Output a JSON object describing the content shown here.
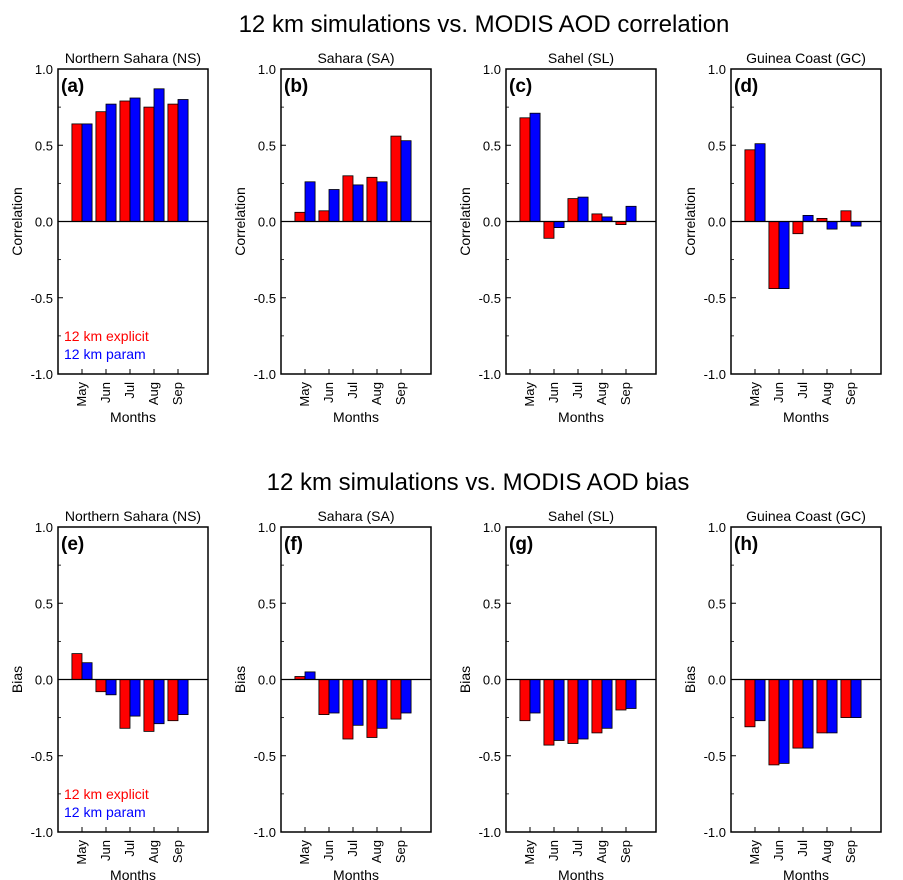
{
  "colors": {
    "explicit": "#ff0000",
    "param": "#0000ff",
    "axis": "#000000"
  },
  "figure_titles": [
    "12 km simulations vs. MODIS AOD correlation",
    "12 km simulations vs. MODIS AOD bias"
  ],
  "legend": {
    "explicit": "12 km explicit",
    "param": "12 km param"
  },
  "chart_data": [
    {
      "type": "bar",
      "title": "Northern Sahara (NS)",
      "panel_label": "(a)",
      "xlabel": "Months",
      "ylabel": "Correlation",
      "ylim": [
        -1,
        1
      ],
      "yticks": [
        "1.0",
        "0.5",
        "0.0",
        "-0.5",
        "-1.0"
      ],
      "categories": [
        "May",
        "Jun",
        "Jul",
        "Aug",
        "Sep"
      ],
      "series": [
        {
          "name": "12 km explicit",
          "values": [
            0.64,
            0.72,
            0.79,
            0.75,
            0.77
          ]
        },
        {
          "name": "12 km param",
          "values": [
            0.64,
            0.77,
            0.81,
            0.87,
            0.8
          ]
        }
      ],
      "legend": true
    },
    {
      "type": "bar",
      "title": "Sahara (SA)",
      "panel_label": "(b)",
      "xlabel": "Months",
      "ylabel": "Correlation",
      "ylim": [
        -1,
        1
      ],
      "yticks": [
        "1.0",
        "0.5",
        "0.0",
        "-0.5",
        "-1.0"
      ],
      "categories": [
        "May",
        "Jun",
        "Jul",
        "Aug",
        "Sep"
      ],
      "series": [
        {
          "name": "12 km explicit",
          "values": [
            0.06,
            0.07,
            0.3,
            0.29,
            0.56
          ]
        },
        {
          "name": "12 km param",
          "values": [
            0.26,
            0.21,
            0.24,
            0.26,
            0.53
          ]
        }
      ],
      "legend": false
    },
    {
      "type": "bar",
      "title": "Sahel (SL)",
      "panel_label": "(c)",
      "xlabel": "Months",
      "ylabel": "Correlation",
      "ylim": [
        -1,
        1
      ],
      "yticks": [
        "1.0",
        "0.5",
        "0.0",
        "-0.5",
        "-1.0"
      ],
      "categories": [
        "May",
        "Jun",
        "Jul",
        "Aug",
        "Sep"
      ],
      "series": [
        {
          "name": "12 km explicit",
          "values": [
            0.68,
            -0.11,
            0.15,
            0.05,
            -0.02
          ]
        },
        {
          "name": "12 km param",
          "values": [
            0.71,
            -0.04,
            0.16,
            0.03,
            0.1
          ]
        }
      ],
      "legend": false
    },
    {
      "type": "bar",
      "title": "Guinea Coast (GC)",
      "panel_label": "(d)",
      "xlabel": "Months",
      "ylabel": "Correlation",
      "ylim": [
        -1,
        1
      ],
      "yticks": [
        "1.0",
        "0.5",
        "0.0",
        "-0.5",
        "-1.0"
      ],
      "categories": [
        "May",
        "Jun",
        "Jul",
        "Aug",
        "Sep"
      ],
      "series": [
        {
          "name": "12 km explicit",
          "values": [
            0.47,
            -0.44,
            -0.08,
            0.02,
            0.07
          ]
        },
        {
          "name": "12 km param",
          "values": [
            0.51,
            -0.44,
            0.04,
            -0.05,
            -0.03
          ]
        }
      ],
      "legend": false
    },
    {
      "type": "bar",
      "title": "Northern Sahara (NS)",
      "panel_label": "(e)",
      "xlabel": "Months",
      "ylabel": "Bias",
      "ylim": [
        -1,
        1
      ],
      "yticks": [
        "1.0",
        "0.5",
        "0.0",
        "-0.5",
        "-1.0"
      ],
      "categories": [
        "May",
        "Jun",
        "Jul",
        "Aug",
        "Sep"
      ],
      "series": [
        {
          "name": "12 km explicit",
          "values": [
            0.17,
            -0.08,
            -0.32,
            -0.34,
            -0.27
          ]
        },
        {
          "name": "12 km param",
          "values": [
            0.11,
            -0.1,
            -0.24,
            -0.29,
            -0.23
          ]
        }
      ],
      "legend": true
    },
    {
      "type": "bar",
      "title": "Sahara (SA)",
      "panel_label": "(f)",
      "xlabel": "Months",
      "ylabel": "Bias",
      "ylim": [
        -1,
        1
      ],
      "yticks": [
        "1.0",
        "0.5",
        "0.0",
        "-0.5",
        "-1.0"
      ],
      "categories": [
        "May",
        "Jun",
        "Jul",
        "Aug",
        "Sep"
      ],
      "series": [
        {
          "name": "12 km explicit",
          "values": [
            0.02,
            -0.23,
            -0.39,
            -0.38,
            -0.26
          ]
        },
        {
          "name": "12 km param",
          "values": [
            0.05,
            -0.22,
            -0.3,
            -0.32,
            -0.22
          ]
        }
      ],
      "legend": false
    },
    {
      "type": "bar",
      "title": "Sahel (SL)",
      "panel_label": "(g)",
      "xlabel": "Months",
      "ylabel": "Bias",
      "ylim": [
        -1,
        1
      ],
      "yticks": [
        "1.0",
        "0.5",
        "0.0",
        "-0.5",
        "-1.0"
      ],
      "categories": [
        "May",
        "Jun",
        "Jul",
        "Aug",
        "Sep"
      ],
      "series": [
        {
          "name": "12 km explicit",
          "values": [
            -0.27,
            -0.43,
            -0.42,
            -0.35,
            -0.2
          ]
        },
        {
          "name": "12 km param",
          "values": [
            -0.22,
            -0.4,
            -0.39,
            -0.32,
            -0.19
          ]
        }
      ],
      "legend": false
    },
    {
      "type": "bar",
      "title": "Guinea Coast (GC)",
      "panel_label": "(h)",
      "xlabel": "Months",
      "ylabel": "Bias",
      "ylim": [
        -1,
        1
      ],
      "yticks": [
        "1.0",
        "0.5",
        "0.0",
        "-0.5",
        "-1.0"
      ],
      "categories": [
        "May",
        "Jun",
        "Jul",
        "Aug",
        "Sep"
      ],
      "series": [
        {
          "name": "12 km explicit",
          "values": [
            -0.31,
            -0.56,
            -0.45,
            -0.35,
            -0.25
          ]
        },
        {
          "name": "12 km param",
          "values": [
            -0.27,
            -0.55,
            -0.45,
            -0.35,
            -0.25
          ]
        }
      ],
      "legend": false
    }
  ]
}
